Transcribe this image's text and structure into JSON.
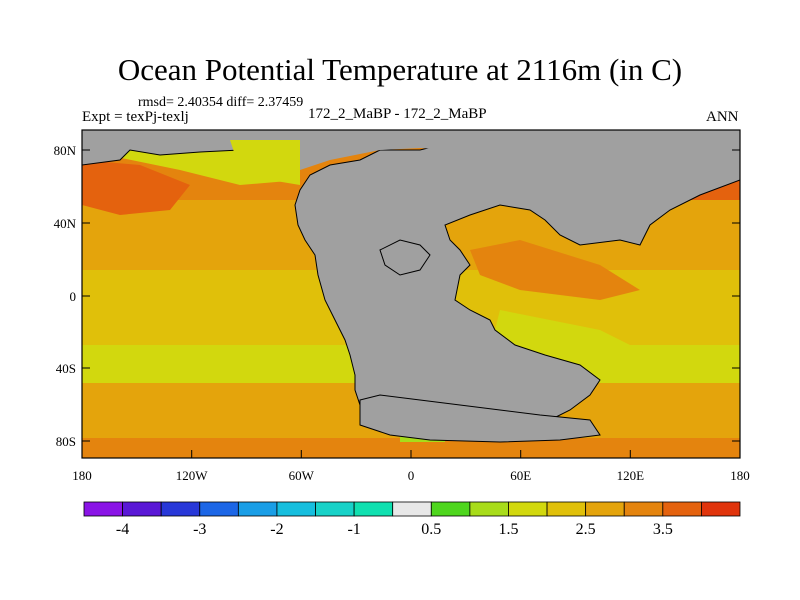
{
  "title": "Ocean Potential Temperature at 2116m (in C)",
  "stats": "rmsd= 2.40354  diff= 2.37459",
  "expt": "Expt = texPj-texlj",
  "center_label": "172_2_MaBP - 172_2_MaBP",
  "period": "ANN",
  "colors": {
    "land": "#a0a0a0",
    "coast": "#000000",
    "frame": "#000000"
  },
  "chart_data": {
    "type": "heatmap",
    "title": "Ocean Potential Temperature at 2116m (in C)",
    "x_ticks": [
      "180",
      "120W",
      "60W",
      "0",
      "60E",
      "120E",
      "180"
    ],
    "y_ticks": [
      "80N",
      "40N",
      "0",
      "40S",
      "80S"
    ],
    "lon_range": [
      -180,
      180
    ],
    "lat_range": [
      -90,
      90
    ],
    "colorbar": {
      "colors": [
        "#8a14e6",
        "#5a18d6",
        "#2838d8",
        "#1c66e6",
        "#1a9ee6",
        "#16bede",
        "#18d2c8",
        "#10e0b0",
        "#e8e8e8",
        "#4ed61e",
        "#a8dc1a",
        "#d2d80e",
        "#e0c00a",
        "#e4a40c",
        "#e4840e",
        "#e4620e",
        "#e0340c"
      ],
      "labels": [
        "-4",
        "-3",
        "-2",
        "-1",
        "0.5",
        "1.5",
        "2.5",
        "3.5"
      ],
      "label_boundaries": [
        1,
        3,
        5,
        7,
        9,
        11,
        13,
        15
      ]
    }
  }
}
